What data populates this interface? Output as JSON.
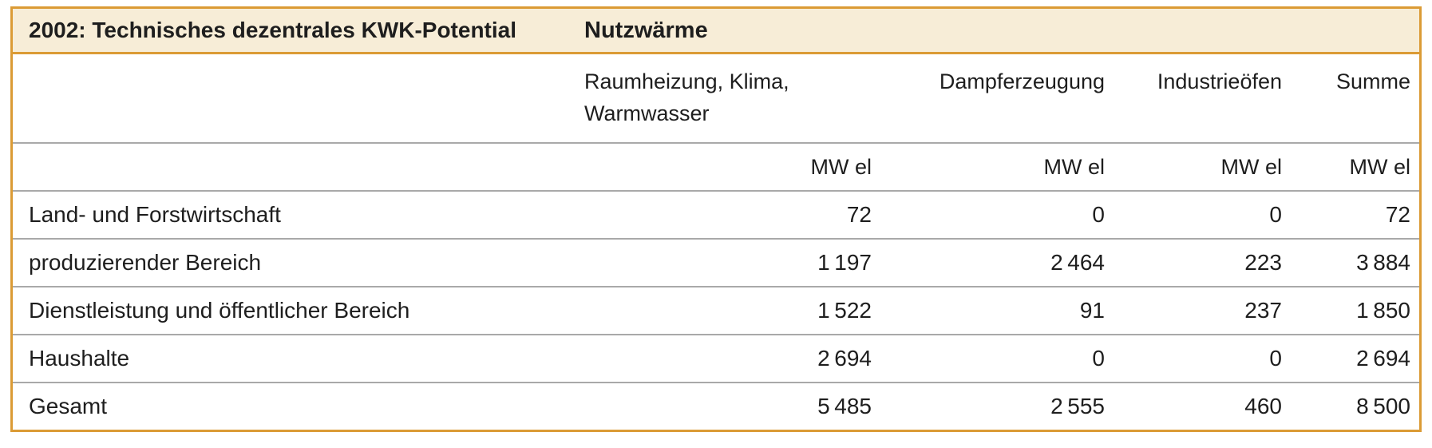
{
  "table": {
    "title": "2002: Technisches dezentrales KWK-Potential",
    "subtitle": "Nutzwärme",
    "columns": [
      "Raumheizung, Klima, Warmwasser",
      "Dampferzeugung",
      "Industrieöfen",
      "Summe"
    ],
    "unit_label": "MW el",
    "rows": [
      {
        "label": "Land- und Forstwirtschaft",
        "values": [
          "72",
          "0",
          "0",
          "72"
        ]
      },
      {
        "label": "produzierender Bereich",
        "values": [
          "1 197",
          "2 464",
          "223",
          "3 884"
        ]
      },
      {
        "label": "Dienstleistung und öffentlicher Bereich",
        "values": [
          "1 522",
          "91",
          "237",
          "1 850"
        ]
      },
      {
        "label": "Haushalte",
        "values": [
          "2 694",
          "0",
          "0",
          "2 694"
        ]
      },
      {
        "label": "Gesamt",
        "values": [
          "5 485",
          "2 555",
          "460",
          "8 500"
        ]
      }
    ],
    "colors": {
      "frame_orange": "#DB9B35",
      "title_band_bg": "#F7EDD7",
      "text": "#1E1E1E",
      "row_separator": "#A9A9A9"
    }
  },
  "chart_data": {
    "type": "table",
    "title": "2002: Technisches dezentrales KWK-Potential – Nutzwärme",
    "unit": "MW el",
    "categories": [
      "Raumheizung, Klima, Warmwasser",
      "Dampferzeugung",
      "Industrieöfen",
      "Summe"
    ],
    "series": [
      {
        "name": "Land- und Forstwirtschaft",
        "values": [
          72,
          0,
          0,
          72
        ]
      },
      {
        "name": "produzierender Bereich",
        "values": [
          1197,
          2464,
          223,
          3884
        ]
      },
      {
        "name": "Dienstleistung und öffentlicher Bereich",
        "values": [
          1522,
          91,
          237,
          1850
        ]
      },
      {
        "name": "Haushalte",
        "values": [
          2694,
          0,
          0,
          2694
        ]
      },
      {
        "name": "Gesamt",
        "values": [
          5485,
          2555,
          460,
          8500
        ]
      }
    ]
  }
}
